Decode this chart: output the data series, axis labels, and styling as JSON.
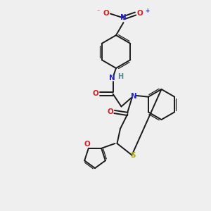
{
  "bg_color": "#efefef",
  "bond_color": "#1a1a1a",
  "N_color": "#2222cc",
  "O_color": "#cc2222",
  "S_color": "#aaaa00",
  "H_color": "#558888",
  "figsize": [
    3.0,
    3.0
  ],
  "dpi": 100,
  "xlim": [
    0,
    10
  ],
  "ylim": [
    0,
    10
  ],
  "lw": 1.4,
  "lw2": 0.9,
  "fs": 7.5,
  "r_benz": 0.72,
  "r_fur": 0.5
}
